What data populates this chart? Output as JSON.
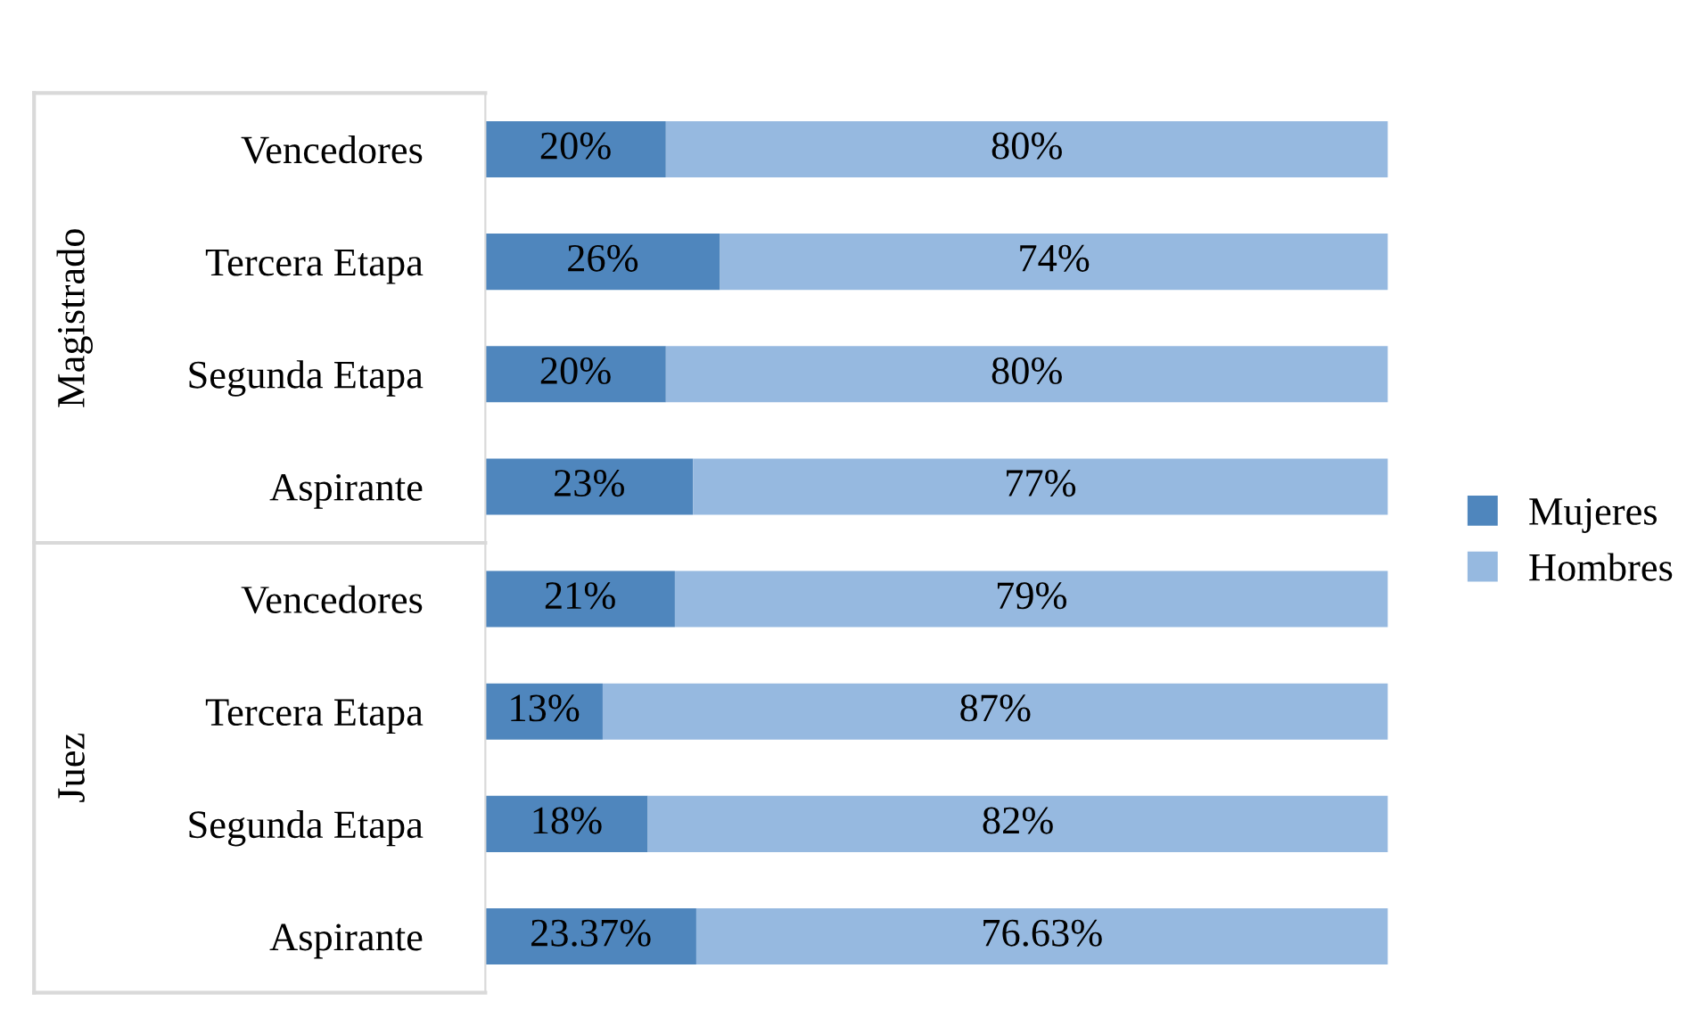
{
  "chart_data": {
    "type": "bar",
    "orientation": "horizontal",
    "stacked": true,
    "categories": [
      "Vencedores",
      "Tercera Etapa",
      "Segunda Etapa",
      "Aspirante",
      "Vencedores",
      "Tercera Etapa",
      "Segunda Etapa",
      "Aspirante"
    ],
    "annotations": [
      "Magistrado",
      "Juez"
    ],
    "series": [
      {
        "name": "Mujeres",
        "color": "#4f86bd",
        "values": [
          20,
          26,
          20,
          23,
          21,
          13,
          18,
          23.37
        ],
        "value_labels": [
          "20%",
          "26%",
          "20%",
          "23%",
          "21%",
          "13%",
          "18%",
          "23.37%"
        ]
      },
      {
        "name": "Hombres",
        "color": "#96b9e0",
        "values": [
          80,
          74,
          80,
          77,
          79,
          87,
          82,
          76.63
        ],
        "value_labels": [
          "80%",
          "74%",
          "80%",
          "77%",
          "79%",
          "87%",
          "82%",
          "76.63%"
        ]
      }
    ],
    "legend": "right",
    "grid": false
  }
}
